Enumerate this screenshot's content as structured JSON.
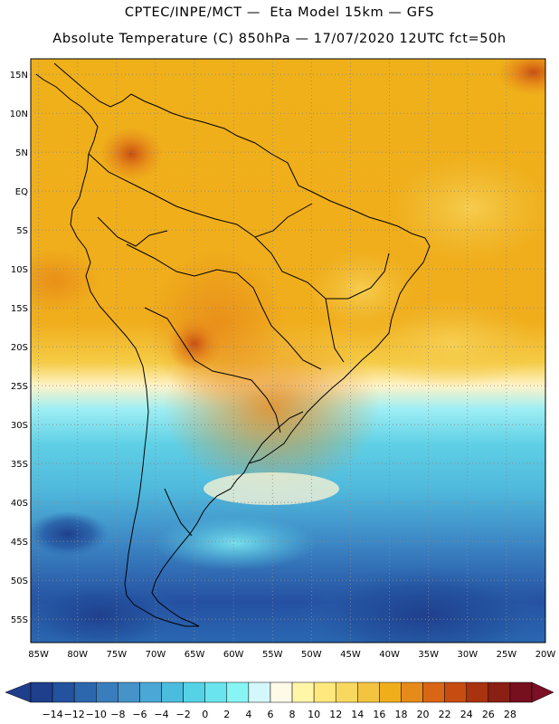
{
  "header": {
    "line1": "CPTEC/INPE/MCT —  Eta Model 15km — GFS",
    "line2": "Absolute Temperature (C) 850hPa — 17/07/2020 12UTC fct=50h"
  },
  "map": {
    "lat_labels": [
      "15N",
      "10N",
      "5N",
      "EQ",
      "5S",
      "10S",
      "15S",
      "20S",
      "25S",
      "30S",
      "35S",
      "40S",
      "45S",
      "50S",
      "55S"
    ],
    "lat_values": [
      15,
      10,
      5,
      0,
      -5,
      -10,
      -15,
      -20,
      -25,
      -30,
      -35,
      -40,
      -45,
      -50,
      -55
    ],
    "lon_labels": [
      "85W",
      "80W",
      "75W",
      "70W",
      "65W",
      "60W",
      "55W",
      "50W",
      "45W",
      "40W",
      "35W",
      "30W",
      "25W",
      "20W"
    ],
    "lon_values": [
      -85,
      -80,
      -75,
      -70,
      -65,
      -60,
      -55,
      -50,
      -45,
      -40,
      -35,
      -30,
      -25,
      -20
    ],
    "lat_range": [
      -58,
      17
    ],
    "lon_range": [
      -86,
      -20
    ]
  },
  "colorbar": {
    "labels": [
      "-14",
      "-12",
      "-10",
      "-8",
      "-6",
      "-4",
      "-2",
      "0",
      "2",
      "4",
      "6",
      "8",
      "10",
      "12",
      "14",
      "16",
      "18",
      "20",
      "22",
      "24",
      "26",
      "28"
    ],
    "colors": [
      "#1f3f8c",
      "#23529e",
      "#2c67ad",
      "#3a7dbd",
      "#4593c9",
      "#4aa7d6",
      "#4bbcde",
      "#55d2e6",
      "#6ae4ee",
      "#88f5f5",
      "#d4f7fb",
      "#fff9e8",
      "#fff6a8",
      "#ffe97e",
      "#f9d860",
      "#f2c440",
      "#f0ae1a",
      "#e68a1a",
      "#d96614",
      "#c74c12",
      "#a9320f",
      "#8a1f14",
      "#760f1e"
    ]
  }
}
